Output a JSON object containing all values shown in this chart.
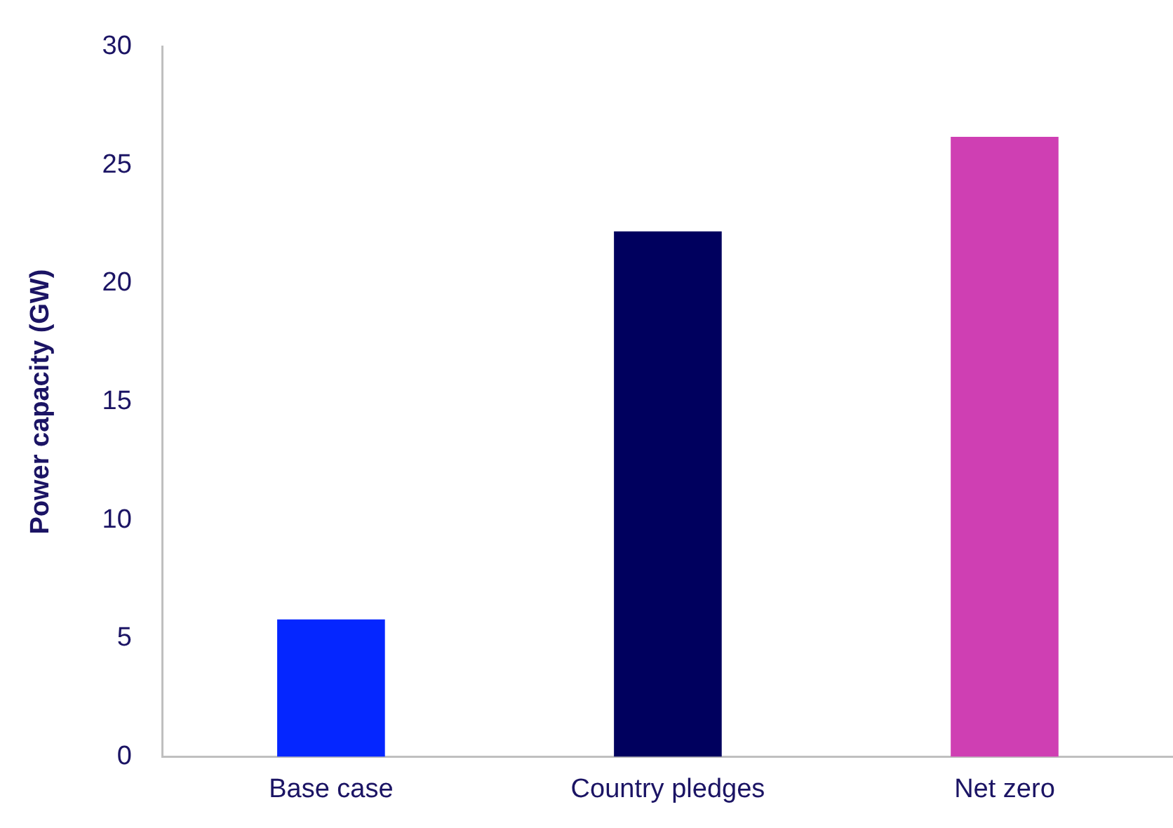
{
  "chart_data": {
    "type": "bar",
    "ylabel": "Power capacity (GW)",
    "categories": [
      "Base case",
      "Country pledges",
      "Net zero"
    ],
    "values": [
      5.8,
      22.2,
      26.2
    ],
    "colors": [
      "#0526ff",
      "#00005e",
      "#cf3fb3"
    ],
    "ylim": [
      0,
      30
    ],
    "yticks": [
      0,
      5,
      10,
      15,
      20,
      25,
      30
    ],
    "grid": false,
    "legend": false
  }
}
